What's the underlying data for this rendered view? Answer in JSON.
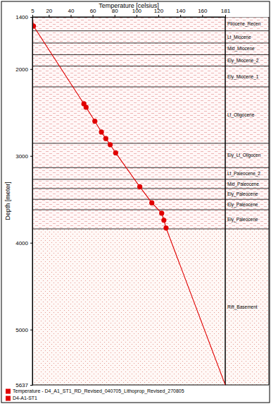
{
  "chart_data": {
    "type": "line",
    "x_label": "Temperature [celsius]",
    "y_label": "Depth [meter]",
    "xlim": [
      5,
      181
    ],
    "xticks": [
      5,
      20,
      40,
      60,
      80,
      100,
      120,
      140,
      160,
      181
    ],
    "ylim": [
      1400,
      5637
    ],
    "yticks": [
      1400,
      2000,
      3000,
      4000,
      5000,
      5637
    ],
    "legend": "bottom",
    "series": [
      {
        "name": "Temperature - D4_A1_ST1_RD_Revised_040705_Lithoprop_Revised_270805",
        "type": "line",
        "color": "#e00000",
        "line_style": "solid",
        "x": [
          5,
          6,
          52,
          54,
          62,
          68,
          72,
          76,
          81,
          103,
          114,
          123,
          125,
          127,
          181
        ],
        "values": [
          1400,
          1505,
          2400,
          2440,
          2600,
          2725,
          2800,
          2870,
          2965,
          3355,
          3540,
          3660,
          3740,
          3830,
          5637
        ]
      },
      {
        "name": "D4-A1-ST1",
        "type": "scatter",
        "color": "#e00000",
        "marker": "circle",
        "x": [
          6,
          52,
          54,
          62,
          68,
          72,
          76,
          81,
          103,
          114,
          123,
          125,
          127
        ],
        "values": [
          1505,
          2400,
          2440,
          2600,
          2725,
          2800,
          2870,
          2965,
          3355,
          3540,
          3660,
          3740,
          3830
        ]
      }
    ],
    "layers": [
      {
        "name": "Pliocene_Recen",
        "top": 1400
      },
      {
        "name": "Lt_Miocene",
        "top": 1560
      },
      {
        "name": "Mid_Miocene",
        "top": 1700
      },
      {
        "name": "Ely_Miocene_2",
        "top": 1835
      },
      {
        "name": "Ely_Miocene_1",
        "top": 1965
      },
      {
        "name": "Lt_Oligocene",
        "top": 2205
      },
      {
        "name": "Ely_Lt_Oligocen",
        "top": 2855
      },
      {
        "name": "Lt_Paleocene_2",
        "top": 3135
      },
      {
        "name": "Mid_Paleocene",
        "top": 3270
      },
      {
        "name": "Ely_Paleocene",
        "top": 3375
      },
      {
        "name": "Ely_Paleocene",
        "top": 3500
      },
      {
        "name": "Ely_Paleocene",
        "top": 3620
      },
      {
        "name": "Rift_Basement",
        "top": 3840
      }
    ]
  }
}
